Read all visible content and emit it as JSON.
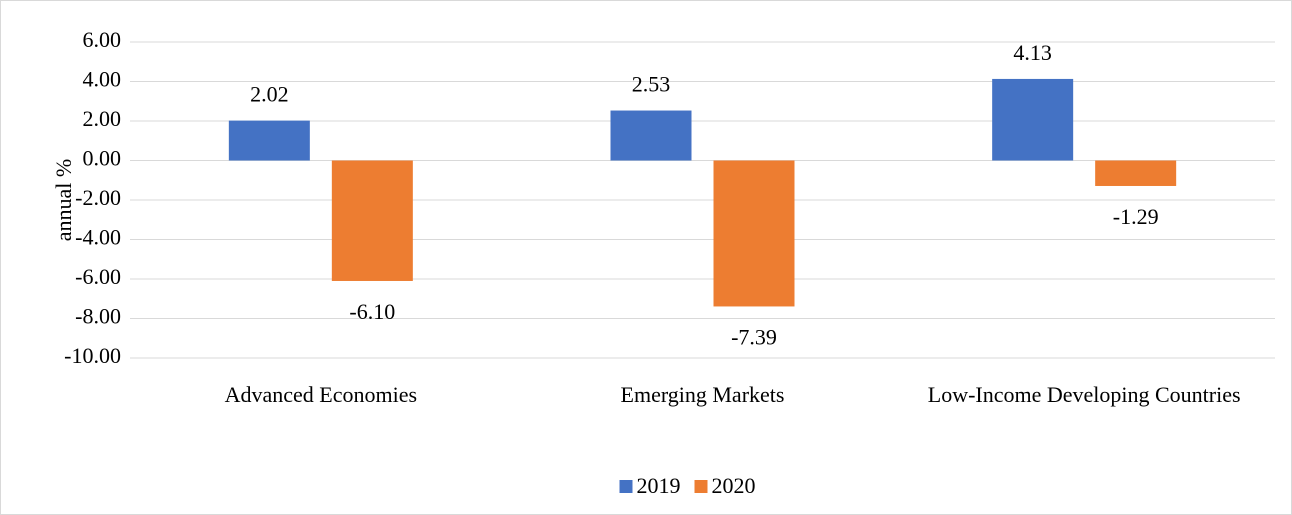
{
  "chart_data": {
    "type": "bar",
    "y_axis_label": "annual %",
    "categories": [
      "Advanced Economies",
      "Emerging Markets",
      "Low-Income Developing Countries"
    ],
    "series": [
      {
        "name": "2019",
        "color": "#4472c4",
        "values": [
          2.02,
          2.53,
          4.13
        ],
        "value_labels": [
          "2.02",
          "2.53",
          "4.13"
        ]
      },
      {
        "name": "2020",
        "color": "#ed7d31",
        "values": [
          -6.1,
          -7.39,
          -1.29
        ],
        "value_labels": [
          "-6.10",
          "-7.39",
          "-1.29"
        ]
      }
    ],
    "ylim": [
      -10,
      6
    ],
    "yticks": [
      {
        "value": -10,
        "label": "-10.00"
      },
      {
        "value": -8,
        "label": "-8.00"
      },
      {
        "value": -6,
        "label": "-6.00"
      },
      {
        "value": -4,
        "label": "-4.00"
      },
      {
        "value": -2,
        "label": "-2.00"
      },
      {
        "value": 0,
        "label": "0.00"
      },
      {
        "value": 2,
        "label": "2.00"
      },
      {
        "value": 4,
        "label": "4.00"
      },
      {
        "value": 6,
        "label": "6.00"
      }
    ],
    "grid": true,
    "legend": "bottom"
  }
}
